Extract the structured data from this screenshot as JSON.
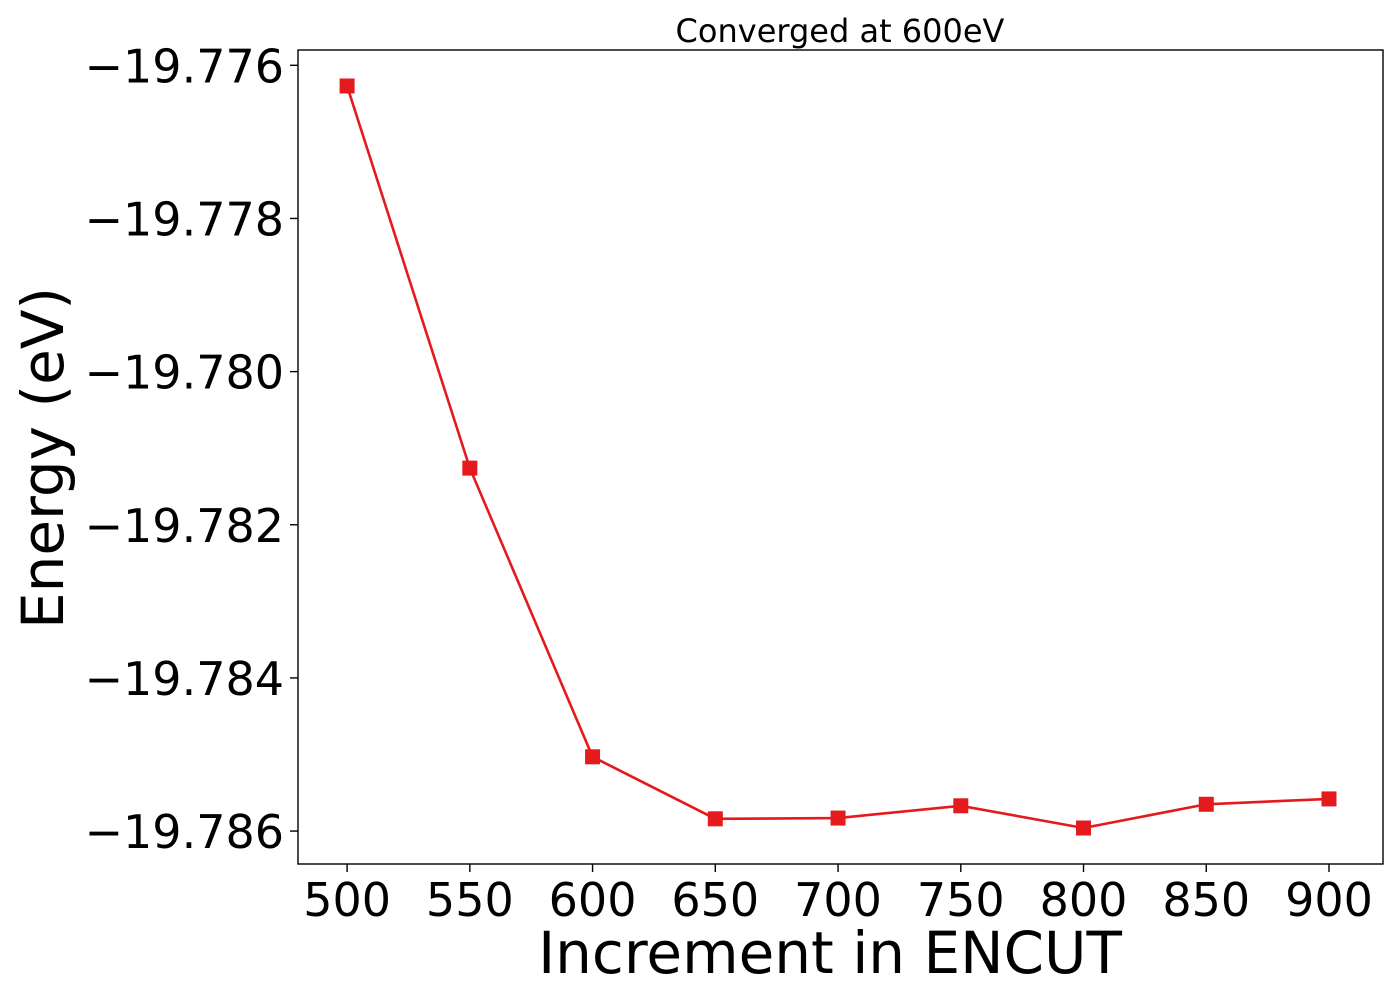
{
  "chart_data": {
    "type": "line",
    "title": "Converged at 600eV",
    "xlabel": "Increment in ENCUT",
    "ylabel": "Energy (eV)",
    "x": [
      500,
      550,
      600,
      650,
      700,
      750,
      800,
      850,
      900
    ],
    "series": [
      {
        "values": [
          -19.77627,
          -19.78126,
          -19.78503,
          -19.78584,
          -19.78583,
          -19.78567,
          -19.78596,
          -19.78565,
          -19.78558
        ],
        "color": "#e41a1c",
        "marker": "square"
      }
    ],
    "xticks": [
      500,
      550,
      600,
      650,
      700,
      750,
      800,
      850,
      900
    ],
    "xtick_labels": [
      "500",
      "550",
      "600",
      "650",
      "700",
      "750",
      "800",
      "850",
      "900"
    ],
    "yticks": [
      -19.776,
      -19.778,
      -19.78,
      -19.782,
      -19.784,
      -19.786
    ],
    "ytick_labels": [
      "−19.776",
      "−19.778",
      "−19.780",
      "−19.782",
      "−19.784",
      "−19.786"
    ],
    "xlim": [
      480,
      922
    ],
    "ylim": [
      -19.78643,
      -19.7758
    ],
    "grid": false,
    "legend": false
  }
}
